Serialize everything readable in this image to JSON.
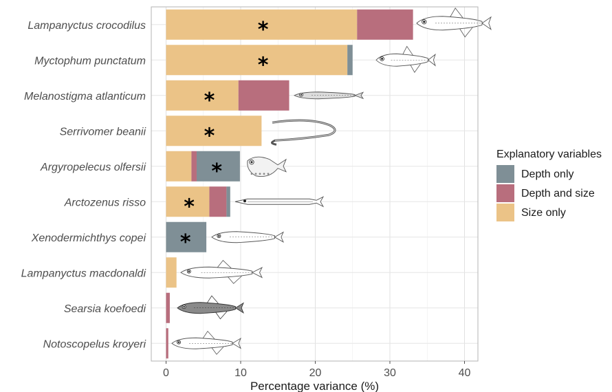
{
  "chart_data": {
    "type": "bar",
    "orientation": "horizontal",
    "stacked": true,
    "xlabel": "Percentage variance (%)",
    "ylabel": "",
    "xlim": [
      -2,
      42
    ],
    "xticks": [
      0,
      10,
      20,
      30,
      40
    ],
    "grid": true,
    "legend_position": "right",
    "legend_title": "Explanatory variables",
    "categories": [
      "Lampanyctus crocodilus",
      "Myctophum punctatum",
      "Melanostigma atlanticum",
      "Serrivomer beanii",
      "Argyropelecus olfersii",
      "Arctozenus risso",
      "Xenodermichthys copei",
      "Lampanyctus macdonaldi",
      "Searsia koefoedi",
      "Notoscopelus kroyeri"
    ],
    "series": [
      {
        "name": "Size only",
        "color": "#EBC387",
        "values": [
          25.6,
          24.3,
          9.7,
          12.8,
          3.4,
          5.8,
          0,
          1.4,
          0,
          0
        ]
      },
      {
        "name": "Depth and size",
        "color": "#B86E7D",
        "values": [
          7.5,
          0,
          6.8,
          0,
          0.7,
          2.3,
          0,
          0,
          0.5,
          0.3
        ]
      },
      {
        "name": "Depth only",
        "color": "#7F8F96",
        "values": [
          0,
          0.7,
          0,
          0,
          5.8,
          0.5,
          5.4,
          0,
          0,
          0
        ]
      }
    ],
    "legend_order": [
      "Depth only",
      "Depth and size",
      "Size only"
    ],
    "annotations": [
      {
        "category": "Lampanyctus crocodilus",
        "text": "*",
        "x": 13
      },
      {
        "category": "Myctophum punctatum",
        "text": "*",
        "x": 13
      },
      {
        "category": "Melanostigma atlanticum",
        "text": "*",
        "x": 5.8
      },
      {
        "category": "Serrivomer beanii",
        "text": "*",
        "x": 5.8
      },
      {
        "category": "Argyropelecus olfersii",
        "text": "*",
        "x": 6.8
      },
      {
        "category": "Arctozenus risso",
        "text": "*",
        "x": 3.1
      },
      {
        "category": "Xenodermichthys copei",
        "text": "*",
        "x": 2.6
      }
    ],
    "icons": [
      "lanternfish-icon",
      "lanternfish-icon",
      "eelpout-icon",
      "sawtooth-eel-icon",
      "hatchetfish-icon",
      "barracudina-icon",
      "smooth-head-icon",
      "lanternfish-icon",
      "tubeshoulder-icon",
      "lanternfish-icon"
    ]
  }
}
